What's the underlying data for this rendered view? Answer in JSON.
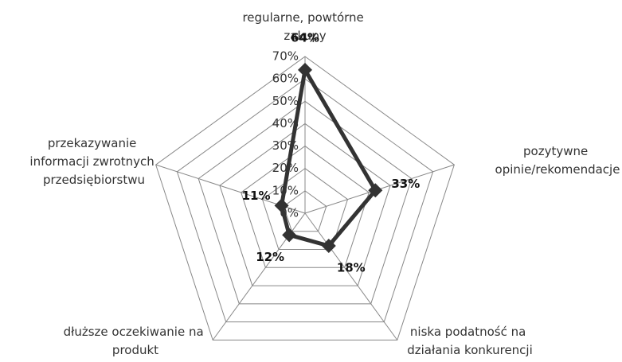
{
  "chart_data": {
    "type": "radar",
    "categories": [
      "regularne, powtórne zakupy",
      "pozytywne opinie/rekomendacje",
      "niska podatność na działania konkurencji",
      "dłuższe oczekiwanie na produkt",
      "przekazywanie informacji zwrotnych przedsiębiorstwu"
    ],
    "values": [
      64,
      33,
      18,
      12,
      11
    ],
    "value_labels": [
      "64%",
      "33%",
      "18%",
      "12%",
      "11%"
    ],
    "color": "#333333",
    "rlim": [
      0,
      70
    ],
    "rticks": [
      {
        "value": 0,
        "label": "0%"
      },
      {
        "value": 10,
        "label": "10%"
      },
      {
        "value": 20,
        "label": "20%"
      },
      {
        "value": 30,
        "label": "30%"
      },
      {
        "value": 40,
        "label": "40%"
      },
      {
        "value": 50,
        "label": "50%"
      },
      {
        "value": 60,
        "label": "60%"
      },
      {
        "value": 70,
        "label": "70%"
      }
    ],
    "grid": true
  }
}
